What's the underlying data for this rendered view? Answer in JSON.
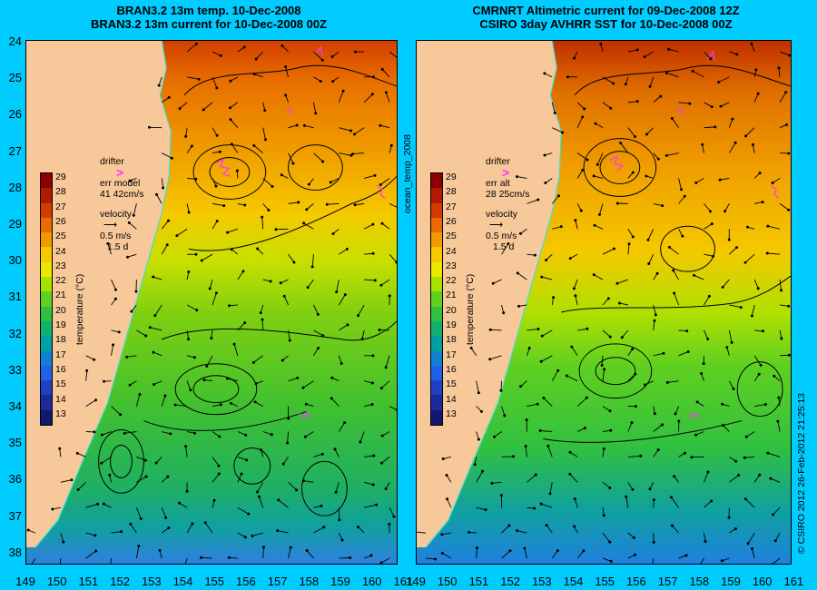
{
  "left_panel": {
    "title_line1": "BRAN3.2 13m temp. 10-Dec-2008",
    "title_line2": "BRAN3.2 13m current for 10-Dec-2008 00Z",
    "legend": {
      "drifter_label": "drifter",
      "drifter_symbol": ">",
      "err_label": "err model",
      "err_value": "41 42cm/s",
      "velocity_label": "velocity",
      "velocity_scale": "0.5 m/s",
      "velocity_time": "1.5 d"
    }
  },
  "right_panel": {
    "title_line1": "CMRNRT Altimetric current for 09-Dec-2008 12Z",
    "title_line2": "CSIRO 3day AVHRR SST for 10-Dec-2008 00Z",
    "legend": {
      "drifter_label": "drifter",
      "drifter_symbol": ">",
      "err_label": "err alt",
      "err_value": "28 25cm/s",
      "velocity_label": "velocity",
      "velocity_scale": "0.5 m/s",
      "velocity_time": "1.5 d"
    }
  },
  "colorbar": {
    "title": "temperature (°C)",
    "ticks": [
      "29",
      "28",
      "27",
      "26",
      "25",
      "24",
      "23",
      "22",
      "21",
      "20",
      "19",
      "18",
      "17",
      "16",
      "15",
      "14",
      "13"
    ],
    "colors": [
      "#8b0000",
      "#b01a00",
      "#d23c00",
      "#e86a00",
      "#f09a00",
      "#f5c800",
      "#e8e800",
      "#a8e000",
      "#60d020",
      "#30c040",
      "#10b070",
      "#00a0a0",
      "#1080d0",
      "#2060e8",
      "#2040c0",
      "#1a2a9a",
      "#101870"
    ]
  },
  "y_axis_labels": [
    "24",
    "25",
    "26",
    "27",
    "28",
    "29",
    "30",
    "31",
    "32",
    "33",
    "34",
    "35",
    "36",
    "37",
    "38"
  ],
  "x_axis_labels": [
    "149",
    "150",
    "151",
    "152",
    "153",
    "154",
    "155",
    "156",
    "157",
    "158",
    "159",
    "160",
    "161"
  ],
  "vertical_label": "ocean_temp_2008",
  "credit": "© CSIRO 2012   26-Feb-2012 21:25:13",
  "colors": {
    "background": "#00ccff",
    "land": "#f7c89a",
    "drifter": "#ff33ff",
    "coastline": "#40e0d0"
  }
}
